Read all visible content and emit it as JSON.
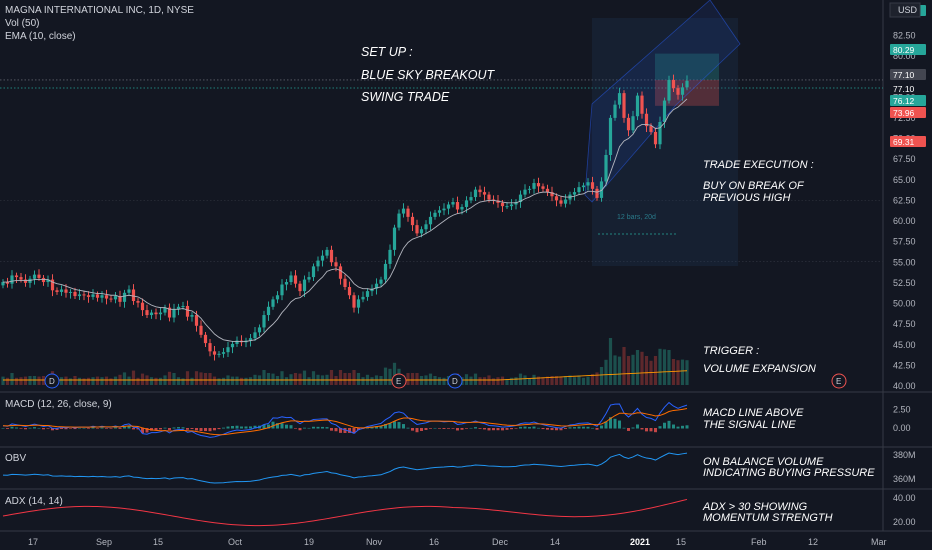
{
  "header": {
    "title": "MAGNA INTERNATIONAL INC, 1D, NYSE",
    "vol": "Vol (50)",
    "ema": "EMA (10, close)",
    "currency": "USD"
  },
  "panes": {
    "macd": "MACD (12, 26, close, 9)",
    "obv": "OBV",
    "adx": "ADX (14, 14)"
  },
  "annotations": {
    "setup": [
      "SET UP :",
      "BLUE SKY BREAKOUT",
      "SWING TRADE"
    ],
    "execution": [
      "TRADE EXECUTION :",
      "BUY ON BREAK OF",
      "PREVIOUS HIGH"
    ],
    "trigger": [
      "TRIGGER :",
      "VOLUME EXPANSION"
    ],
    "macd": [
      "MACD LINE ABOVE",
      "THE SIGNAL LINE"
    ],
    "obv": [
      "ON BALANCE VOLUME",
      "INDICATING BUYING PRESSURE"
    ],
    "adx": [
      "ADX > 30 SHOWING",
      "MOMENTUM STRENGTH"
    ],
    "bars_label": "12 bars, 20d"
  },
  "event_markers": [
    {
      "label": "D",
      "date": "2020-09-02"
    },
    {
      "label": "E",
      "date": "2020-11-06"
    },
    {
      "label": "D",
      "date": "2020-11-18"
    },
    {
      "label": "E",
      "date": "2021-02-18"
    }
  ],
  "colors": {
    "background": "#131722",
    "up": "#26a69a",
    "down": "#ef5350",
    "ema": "#b2b5be",
    "macd": "#2962ff",
    "signal": "#ff6d00",
    "obv": "#2196f3",
    "adx": "#f23645",
    "text": "#ffffff"
  },
  "chart_data": [
    {
      "type": "candlestick",
      "title": "MAGNA INTERNATIONAL INC, 1D, NYSE",
      "ylabel": "USD",
      "ylim": [
        40,
        85
      ],
      "x_ticks": [
        "17",
        "Sep",
        "15",
        "Oct",
        "19",
        "Nov",
        "16",
        "Dec",
        "14",
        "2021",
        "15",
        "Feb",
        "12",
        "Mar"
      ],
      "y_ticks": [
        "40.00",
        "42.50",
        "45.00",
        "47.50",
        "50.00",
        "52.50",
        "55.00",
        "57.50",
        "60.00",
        "62.50",
        "65.00",
        "67.50",
        "70.00",
        "72.50",
        "75.00",
        "77.50",
        "80.00",
        "82.50"
      ],
      "price_labels": [
        {
          "value": "84.00",
          "kind": "up"
        },
        {
          "value": "80.29",
          "kind": "up"
        },
        {
          "value": "77.10",
          "kind": "level"
        },
        {
          "value": "77.10",
          "kind": "neutral"
        },
        {
          "value": "76.12",
          "kind": "up"
        },
        {
          "value": "73.96",
          "kind": "down"
        },
        {
          "value": "69.31",
          "kind": "down"
        }
      ],
      "close": [
        52.6,
        52.4,
        53.4,
        53.2,
        52.9,
        52.5,
        53.0,
        53.5,
        53.1,
        52.6,
        52.9,
        51.6,
        51.4,
        51.7,
        51.3,
        51.4,
        50.9,
        51.1,
        51.0,
        50.8,
        51.1,
        50.7,
        51.0,
        50.6,
        50.5,
        50.9,
        50.2,
        51.3,
        51.7,
        50.3,
        50.1,
        49.2,
        48.6,
        48.9,
        48.7,
        48.9,
        49.5,
        48.3,
        49.3,
        49.6,
        49.7,
        48.4,
        48.6,
        47.3,
        46.2,
        45.2,
        44.2,
        43.8,
        43.9,
        44.1,
        44.7,
        45.1,
        45.5,
        45.3,
        45.5,
        45.8,
        46.5,
        47.1,
        48.6,
        49.6,
        50.5,
        51.0,
        52.3,
        52.6,
        53.4,
        52.4,
        51.5,
        52.9,
        53.2,
        54.5,
        55.2,
        55.8,
        56.5,
        55.0,
        54.5,
        53.0,
        52.0,
        51.0,
        49.5,
        50.5,
        50.8,
        51.5,
        51.8,
        52.4,
        52.9,
        54.8,
        56.5,
        59.2,
        60.9,
        61.5,
        60.5,
        59.5,
        58.5,
        59.0,
        59.6,
        60.5,
        61.0,
        61.3,
        61.5,
        62.0,
        62.3,
        61.4,
        61.7,
        62.5,
        62.9,
        63.8,
        63.5,
        63.2,
        62.6,
        62.5,
        62.2,
        61.8,
        61.8,
        62.0,
        62.3,
        63.2,
        63.8,
        63.9,
        64.6,
        64.2,
        63.9,
        63.5,
        63.0,
        62.5,
        62.1,
        62.6,
        63.2,
        63.5,
        64.1,
        64.3,
        64.7,
        63.9,
        62.8,
        64.8,
        68.0,
        72.5,
        74.1,
        75.5,
        72.5,
        71.0,
        72.7,
        75.2,
        73.0,
        71.5,
        70.8,
        69.3,
        72.0,
        74.6,
        77.1,
        76.1,
        75.3,
        76.2,
        77.0
      ],
      "ema_10": [
        52.6,
        52.6,
        52.7,
        52.8,
        52.8,
        52.8,
        52.8,
        52.9,
        52.9,
        52.9,
        52.9,
        52.6,
        52.4,
        52.3,
        52.1,
        51.9,
        51.7,
        51.6,
        51.5,
        51.4,
        51.3,
        51.2,
        51.2,
        51.1,
        51.0,
        51.0,
        50.8,
        50.9,
        51.0,
        50.9,
        50.8,
        50.5,
        50.1,
        49.8,
        49.6,
        49.5,
        49.5,
        49.3,
        49.3,
        49.3,
        49.4,
        49.2,
        49.1,
        48.7,
        48.2,
        47.5,
        46.9,
        46.3,
        45.9,
        45.6,
        45.5,
        45.4,
        45.4,
        45.4,
        45.4,
        45.5,
        45.6,
        45.9,
        46.4,
        47.0,
        47.5,
        48.1,
        48.9,
        49.5,
        50.2,
        50.6,
        50.7,
        51.1,
        51.5,
        52.1,
        52.7,
        53.2,
        53.9,
        54.1,
        54.2,
        54.0,
        53.6,
        53.1,
        52.4,
        52.0,
        51.8,
        51.8,
        51.7,
        51.9,
        52.0,
        52.5,
        53.2,
        54.3,
        55.6,
        56.7,
        57.4,
        57.8,
        58.0,
        58.2,
        58.5,
        58.8,
        59.2,
        59.6,
        60.0,
        60.4,
        60.7,
        60.9,
        61.0,
        61.3,
        61.6,
        62.0,
        62.3,
        62.4,
        62.5,
        62.5,
        62.4,
        62.3,
        62.2,
        62.2,
        62.2,
        62.4,
        62.7,
        62.9,
        63.2,
        63.4,
        63.5,
        63.5,
        63.4,
        63.2,
        63.0,
        62.9,
        62.9,
        63.0,
        63.2,
        63.3,
        63.6,
        63.6,
        63.5,
        63.7,
        64.4,
        65.9,
        67.4,
        69.0,
        69.7,
        70.0,
        70.5,
        71.4,
        71.7,
        71.7,
        71.6,
        71.2,
        71.3,
        71.9,
        72.9,
        73.5,
        73.8,
        74.3,
        74.8
      ],
      "ylim_macd": [
        -1.2,
        3.6
      ],
      "macd_ticks": [
        "2.50",
        "0.00"
      ],
      "obv_ticks": [
        "380M",
        "360M"
      ],
      "adx_ticks": [
        "40.00",
        "20.00"
      ],
      "ylim_adx": [
        15,
        45
      ]
    }
  ]
}
